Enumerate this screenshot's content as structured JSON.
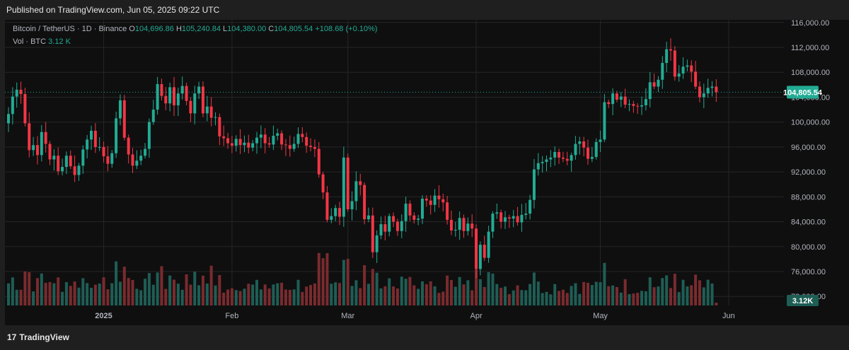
{
  "header": {
    "published": "Published on TradingView.com, Jun 05, 2025 09:22 UTC"
  },
  "legend": {
    "symbol": "Bitcoin / TetherUS · 1D · Binance",
    "open_label": "O",
    "open": "104,696.86",
    "high_label": "H",
    "high": "105,240.84",
    "low_label": "L",
    "low": "104,380.00",
    "close_label": "C",
    "close": "104,805.54",
    "change": "+108.68 (+0.10%)",
    "vol_label": "Vol · BTC",
    "vol_value": "3.12 K"
  },
  "footer": {
    "logo_mark": "17",
    "logo_text": "TradingView"
  },
  "colors": {
    "up": "#22ab94",
    "down": "#f23645",
    "up_vol": "#1e5e55",
    "down_vol": "#7a2b2f"
  },
  "chart_data": {
    "type": "candlestick",
    "symbol": "BTC/USDT",
    "interval": "1D",
    "ylim": [
      72000,
      116000
    ],
    "y_ticks": [
      "116,000.00",
      "112,000.00",
      "108,000.00",
      "104,000.00",
      "100,000.00",
      "96,000.00",
      "92,000.00",
      "88,000.00",
      "84,000.00",
      "80,000.00",
      "76,000.00",
      "72,000.00"
    ],
    "x_ticks": [
      {
        "label": "2025",
        "index": 23
      },
      {
        "label": "Feb",
        "index": 54
      },
      {
        "label": "Mar",
        "index": 82
      },
      {
        "label": "Apr",
        "index": 113
      },
      {
        "label": "May",
        "index": 143
      },
      {
        "label": "Jun",
        "index": 174
      }
    ],
    "last_price_label": "104,805.54",
    "volume_label": "3.12K",
    "closes": [
      101300,
      104100,
      105200,
      104500,
      99800,
      95500,
      96300,
      94700,
      98400,
      96500,
      94000,
      94600,
      92100,
      92800,
      94600,
      92900,
      91500,
      93000,
      95600,
      97200,
      98600,
      96000,
      96000,
      94500,
      93300,
      95000,
      100600,
      103500,
      97500,
      94800,
      93000,
      93800,
      94600,
      95700,
      100000,
      102000,
      106100,
      104200,
      103000,
      105600,
      102700,
      104600,
      105800,
      103400,
      101400,
      104600,
      105700,
      101400,
      102500,
      100700,
      100800,
      97700,
      97400,
      96600,
      96200,
      97300,
      96300,
      96700,
      95900,
      96600,
      97500,
      98000,
      96600,
      96400,
      97800,
      98200,
      96400,
      96300,
      95700,
      96500,
      98100,
      97600,
      96200,
      96000,
      95700,
      91600,
      88700,
      84300,
      84900,
      86200,
      84800,
      94300,
      86000,
      87300,
      90500,
      89900,
      84400,
      85000,
      79100,
      81800,
      83600,
      82400,
      84900,
      84000,
      82500,
      84100,
      86900,
      85000,
      84300,
      84500,
      87700,
      87400,
      86700,
      88200,
      87600,
      87100,
      84300,
      82600,
      82700,
      84600,
      82500,
      83700,
      82900,
      76400,
      80300,
      78200,
      82400,
      85300,
      85500,
      84000,
      84700,
      84500,
      84900,
      83900,
      85100,
      85300,
      87500,
      92400,
      93400,
      93600,
      94000,
      94300,
      95200,
      94300,
      94100,
      93800,
      94700,
      96500,
      96900,
      95900,
      94100,
      94400,
      96800,
      97200,
      103200,
      102900,
      104600,
      103600,
      104100,
      102800,
      102900,
      102600,
      102500,
      102700,
      103700,
      106400,
      105700,
      106800,
      109500,
      111700,
      111500,
      107300,
      107800,
      108900,
      109100,
      108100,
      105700,
      104000,
      104600,
      105500,
      105700,
      104800
    ]
  }
}
